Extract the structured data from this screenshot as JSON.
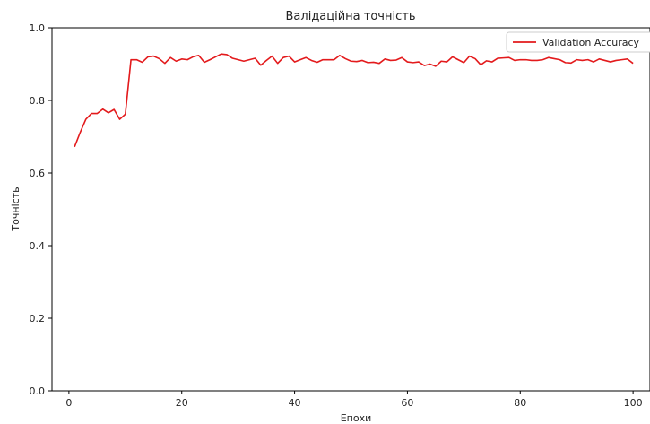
{
  "chart_data": {
    "type": "line",
    "title": "Валідаційна точність",
    "xlabel": "Епохи",
    "ylabel": "Точність",
    "xlim": [
      -3,
      103
    ],
    "ylim": [
      0.0,
      1.0
    ],
    "xticks": [
      0,
      20,
      40,
      60,
      80,
      100
    ],
    "yticks": [
      0.0,
      0.2,
      0.4,
      0.6,
      0.8,
      1.0
    ],
    "xtick_labels": [
      "0",
      "20",
      "40",
      "60",
      "80",
      "100"
    ],
    "ytick_labels": [
      "0.0",
      "0.2",
      "0.4",
      "0.6",
      "0.8",
      "1.0"
    ],
    "grid": false,
    "legend": "top-right",
    "series": [
      {
        "name": "Validation Accuracy",
        "color": "#e31a1c",
        "x": [
          1,
          2,
          3,
          4,
          5,
          6,
          7,
          8,
          9,
          10,
          11,
          12,
          13,
          14,
          15,
          16,
          17,
          18,
          19,
          20,
          21,
          22,
          23,
          24,
          25,
          26,
          27,
          28,
          29,
          30,
          31,
          32,
          33,
          34,
          35,
          36,
          37,
          38,
          39,
          40,
          41,
          42,
          43,
          44,
          45,
          46,
          47,
          48,
          49,
          50,
          51,
          52,
          53,
          54,
          55,
          56,
          57,
          58,
          59,
          60,
          61,
          62,
          63,
          64,
          65,
          66,
          67,
          68,
          69,
          70,
          71,
          72,
          73,
          74,
          75,
          76,
          77,
          78,
          79,
          80,
          81,
          82,
          83,
          84,
          85,
          86,
          87,
          88,
          89,
          90,
          91,
          92,
          93,
          94,
          95,
          96,
          97,
          98,
          99,
          100
        ],
        "y": [
          0.672,
          0.712,
          0.748,
          0.764,
          0.764,
          0.776,
          0.766,
          0.775,
          0.748,
          0.762,
          0.912,
          0.912,
          0.905,
          0.92,
          0.922,
          0.915,
          0.902,
          0.918,
          0.908,
          0.914,
          0.912,
          0.92,
          0.924,
          0.905,
          0.912,
          0.92,
          0.928,
          0.926,
          0.916,
          0.912,
          0.908,
          0.912,
          0.916,
          0.897,
          0.91,
          0.922,
          0.902,
          0.918,
          0.922,
          0.906,
          0.912,
          0.918,
          0.91,
          0.905,
          0.912,
          0.912,
          0.912,
          0.924,
          0.915,
          0.908,
          0.907,
          0.91,
          0.904,
          0.905,
          0.902,
          0.914,
          0.91,
          0.911,
          0.918,
          0.906,
          0.904,
          0.906,
          0.896,
          0.9,
          0.894,
          0.908,
          0.906,
          0.92,
          0.912,
          0.904,
          0.922,
          0.915,
          0.898,
          0.909,
          0.906,
          0.916,
          0.917,
          0.918,
          0.91,
          0.912,
          0.912,
          0.91,
          0.91,
          0.912,
          0.918,
          0.915,
          0.912,
          0.904,
          0.903,
          0.912,
          0.91,
          0.912,
          0.906,
          0.914,
          0.91,
          0.906,
          0.91,
          0.912,
          0.914,
          0.902
        ]
      }
    ]
  }
}
